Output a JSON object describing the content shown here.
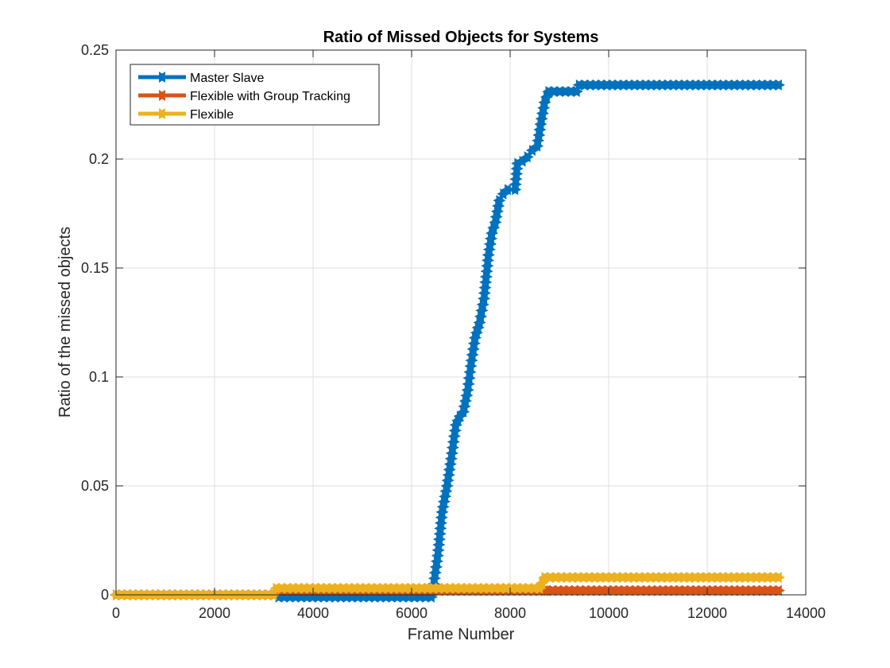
{
  "chart_data": {
    "type": "line",
    "title": "Ratio of Missed Objects for Systems",
    "xlabel": "Frame Number",
    "ylabel": "Ratio of the missed objects",
    "xlim": [
      0,
      14000
    ],
    "ylim": [
      0,
      0.25
    ],
    "xticks": [
      0,
      2000,
      4000,
      6000,
      8000,
      10000,
      12000,
      14000
    ],
    "yticks": [
      0,
      0.05,
      0.1,
      0.15,
      0.2,
      0.25
    ],
    "xtick_labels": [
      "0",
      "2000",
      "4000",
      "6000",
      "8000",
      "10000",
      "12000",
      "14000"
    ],
    "ytick_labels": [
      "0",
      "0.05",
      "0.1",
      "0.15",
      "0.2",
      "0.25"
    ],
    "grid": true,
    "legend_position": "top-left",
    "series": [
      {
        "name": "Master Slave",
        "color": "#0072BD",
        "points": [
          [
            0,
            0
          ],
          [
            3200,
            0
          ],
          [
            3300,
            -0.001
          ],
          [
            6400,
            -0.001
          ],
          [
            6450,
            0.005
          ],
          [
            6530,
            0.018
          ],
          [
            6620,
            0.038
          ],
          [
            6720,
            0.05
          ],
          [
            6820,
            0.065
          ],
          [
            6900,
            0.078
          ],
          [
            6980,
            0.082
          ],
          [
            7050,
            0.084
          ],
          [
            7140,
            0.094
          ],
          [
            7200,
            0.105
          ],
          [
            7290,
            0.118
          ],
          [
            7380,
            0.125
          ],
          [
            7470,
            0.136
          ],
          [
            7560,
            0.156
          ],
          [
            7630,
            0.166
          ],
          [
            7700,
            0.171
          ],
          [
            7780,
            0.181
          ],
          [
            7860,
            0.184
          ],
          [
            7950,
            0.186
          ],
          [
            8100,
            0.186
          ],
          [
            8150,
            0.198
          ],
          [
            8250,
            0.199
          ],
          [
            8350,
            0.201
          ],
          [
            8450,
            0.204
          ],
          [
            8550,
            0.206
          ],
          [
            8620,
            0.216
          ],
          [
            8700,
            0.226
          ],
          [
            8780,
            0.231
          ],
          [
            9350,
            0.231
          ],
          [
            9400,
            0.234
          ],
          [
            13450,
            0.234
          ]
        ]
      },
      {
        "name": "Flexible with Group Tracking",
        "color": "#D95319",
        "points": [
          [
            0,
            0
          ],
          [
            3200,
            0
          ],
          [
            3300,
            0.002
          ],
          [
            8700,
            0.002
          ],
          [
            8750,
            0.002
          ],
          [
            13450,
            0.002
          ]
        ]
      },
      {
        "name": "Flexible",
        "color": "#EDB120",
        "points": [
          [
            0,
            0
          ],
          [
            3200,
            0
          ],
          [
            3250,
            0.003
          ],
          [
            8600,
            0.003
          ],
          [
            8700,
            0.008
          ],
          [
            13450,
            0.008
          ]
        ]
      }
    ]
  }
}
